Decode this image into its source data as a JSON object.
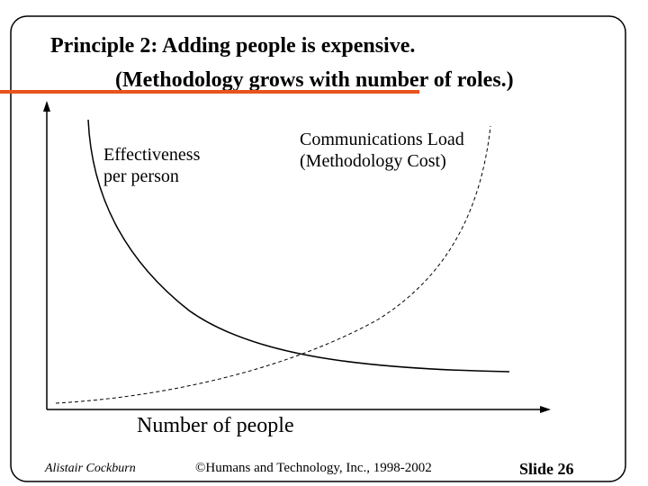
{
  "header": {
    "title_line_1": "Principle 2: Adding people is expensive.",
    "title_line_2": "(Methodology grows with number of roles.)"
  },
  "diagram": {
    "curve_1_label_line_1": "Effectiveness",
    "curve_1_label_line_2": "per person",
    "curve_2_label_line_1": "Communications Load",
    "curve_2_label_line_2": "(Methodology Cost)",
    "x_axis_label": "Number of people"
  },
  "footer": {
    "author": "Alistair Cockburn",
    "copyright": "©Humans and Technology, Inc., 1998-2002",
    "slide": "Slide 26"
  }
}
